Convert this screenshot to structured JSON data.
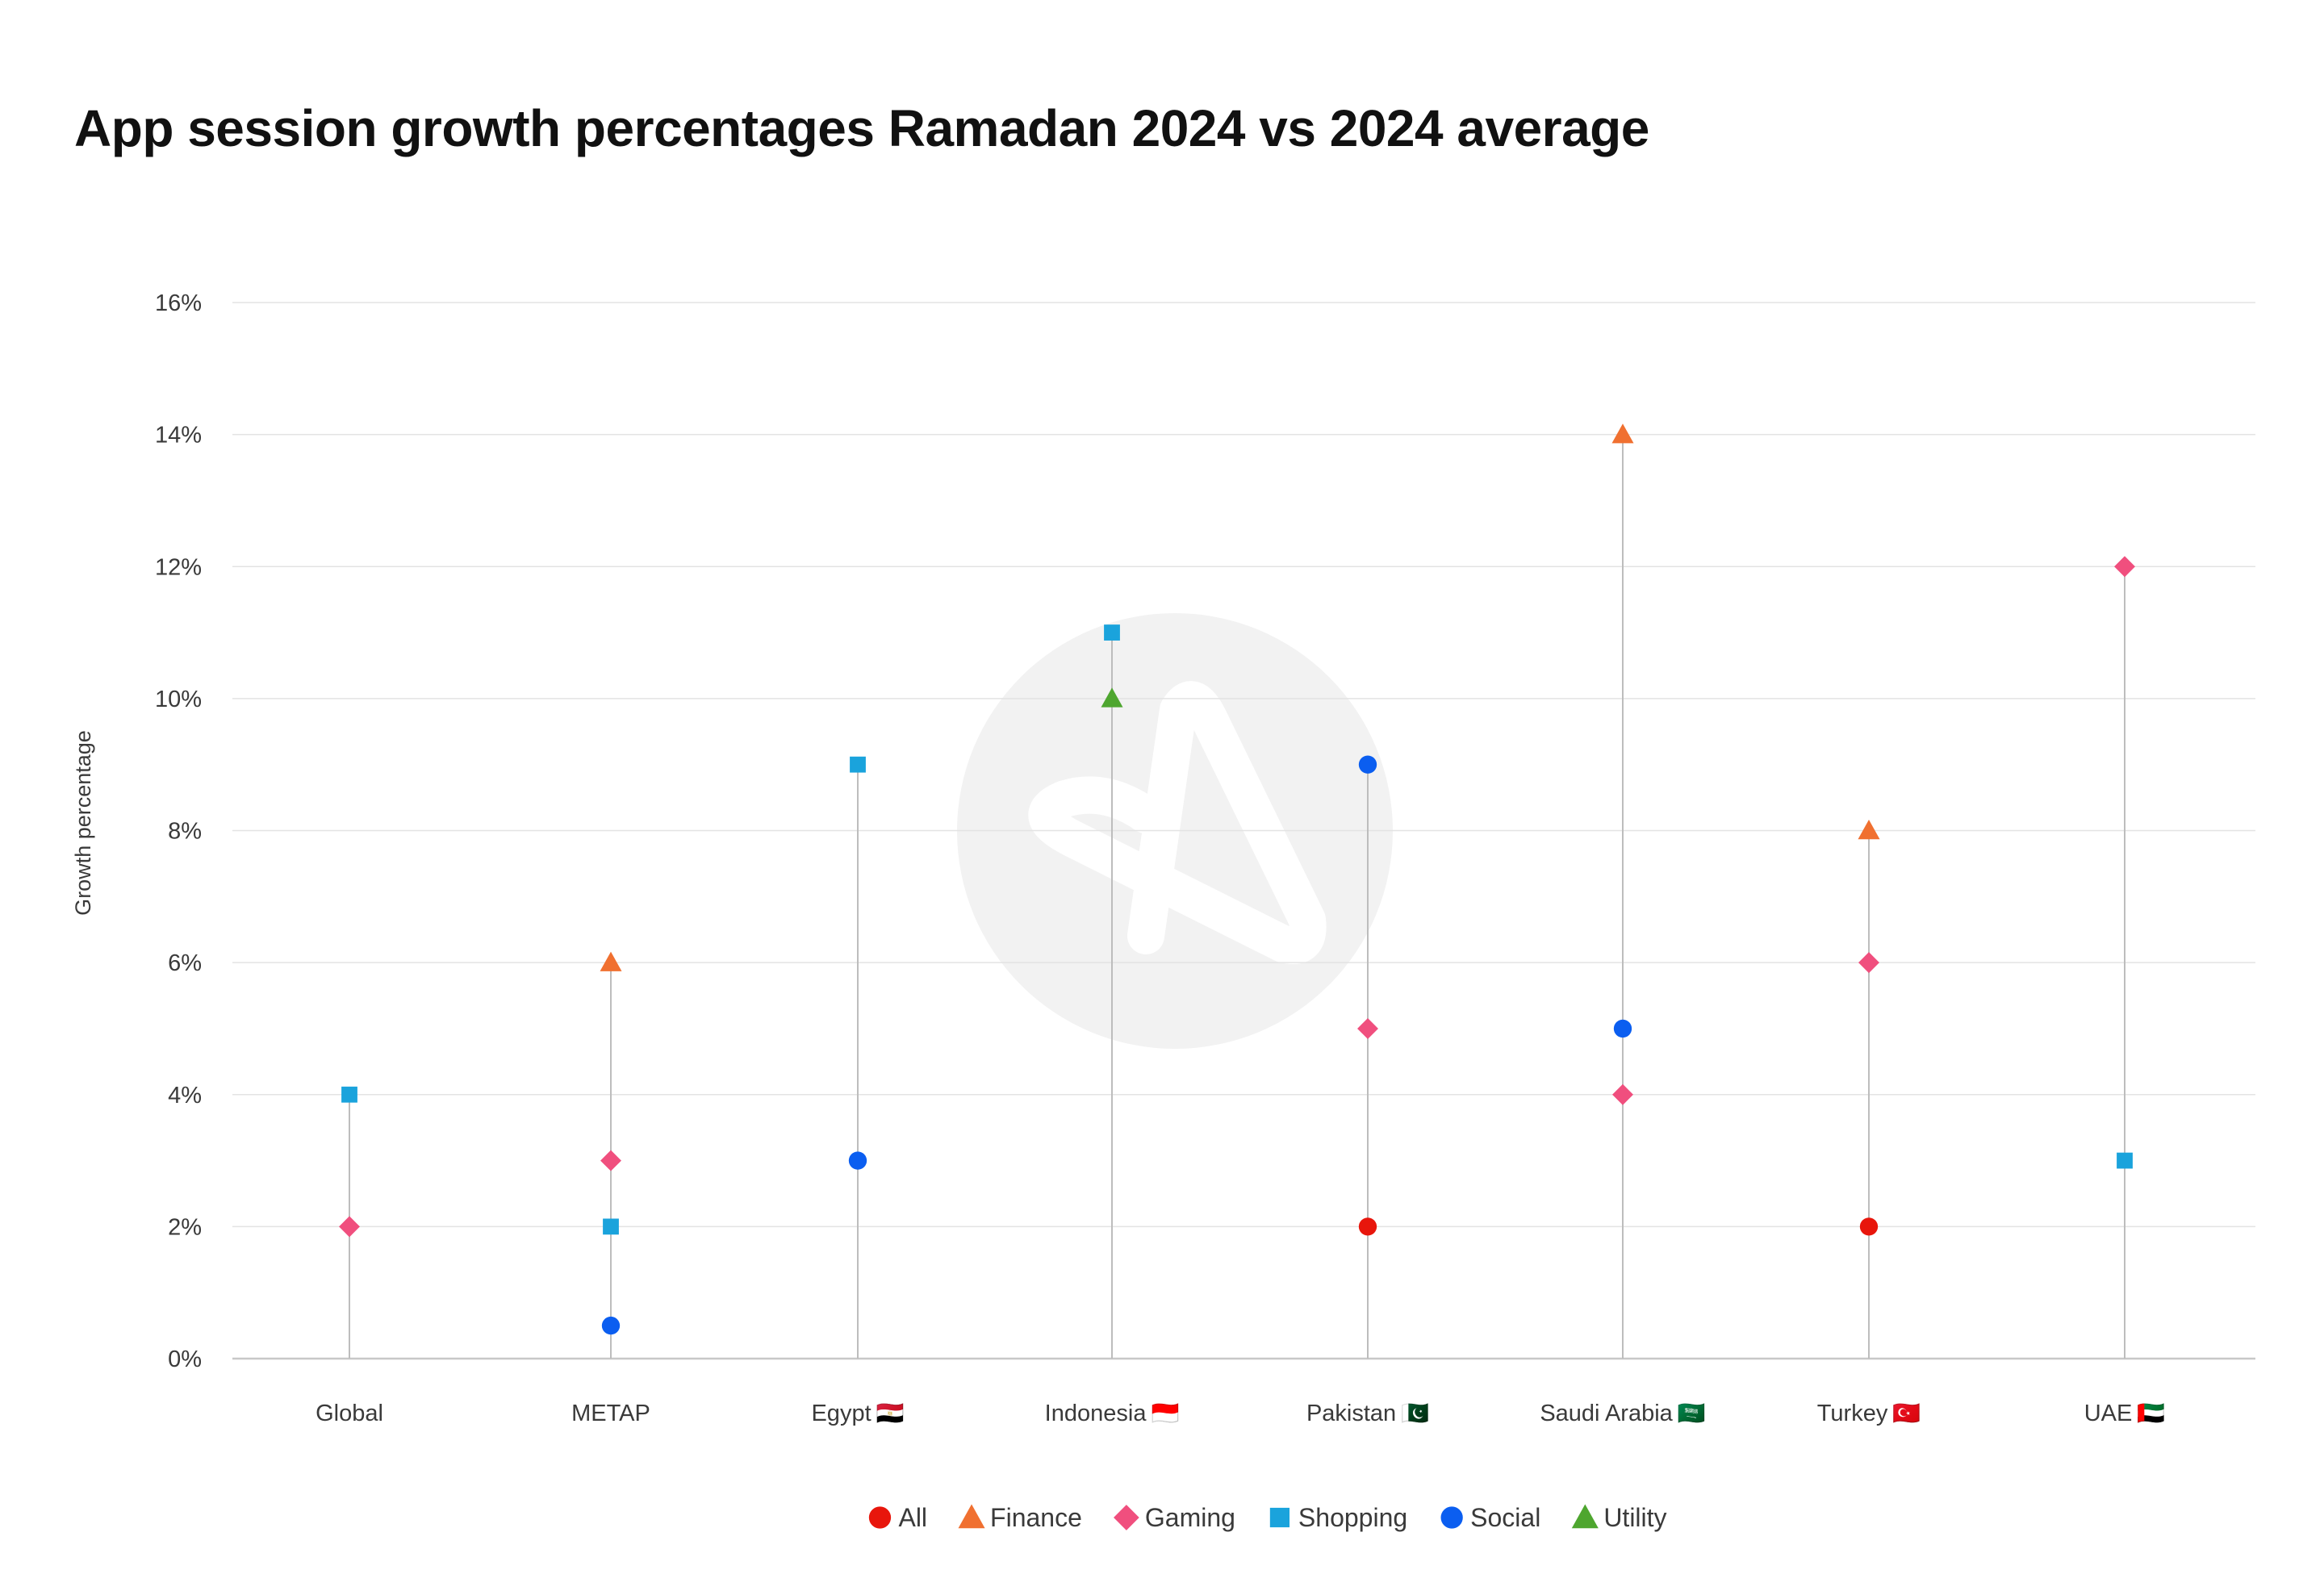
{
  "chart_data": {
    "type": "scatter",
    "title": "App session growth percentages Ramadan 2024 vs 2024 average",
    "ylabel": "Growth percentage",
    "xlabel": "",
    "ylim": [
      0,
      16
    ],
    "y_ticks": [
      0,
      2,
      4,
      6,
      8,
      10,
      12,
      14,
      16
    ],
    "y_tick_suffix": "%",
    "grid": true,
    "legend_position": "bottom-center",
    "categories": [
      {
        "label": "Global",
        "flag": ""
      },
      {
        "label": "METAP",
        "flag": ""
      },
      {
        "label": "Egypt",
        "flag": "🇪🇬"
      },
      {
        "label": "Indonesia",
        "flag": "🇮🇩"
      },
      {
        "label": "Pakistan",
        "flag": "🇵🇰"
      },
      {
        "label": "Saudi Arabia",
        "flag": "🇸🇦"
      },
      {
        "label": "Turkey",
        "flag": "🇹🇷"
      },
      {
        "label": "UAE",
        "flag": "🇦🇪"
      }
    ],
    "series": [
      {
        "name": "All",
        "marker": "circle",
        "color": "#e8160c",
        "values": [
          null,
          null,
          null,
          null,
          2,
          null,
          2,
          null
        ]
      },
      {
        "name": "Finance",
        "marker": "triangle",
        "color": "#f07030",
        "values": [
          null,
          6,
          null,
          null,
          null,
          14,
          8,
          null
        ]
      },
      {
        "name": "Gaming",
        "marker": "diamond",
        "color": "#f04f7e",
        "values": [
          2,
          3,
          null,
          null,
          5,
          4,
          6,
          12
        ]
      },
      {
        "name": "Shopping",
        "marker": "square",
        "color": "#1aa3dc",
        "values": [
          4,
          2,
          9,
          11,
          null,
          null,
          null,
          3
        ]
      },
      {
        "name": "Social",
        "marker": "circle",
        "color": "#0b5ef0",
        "values": [
          null,
          0.5,
          3,
          null,
          9,
          5,
          null,
          null
        ]
      },
      {
        "name": "Utility",
        "marker": "triangle",
        "color": "#4ea62f",
        "values": [
          null,
          null,
          null,
          10,
          null,
          null,
          null,
          null
        ]
      }
    ]
  },
  "colors": {
    "stem": "#bdbdbd",
    "grid": "#e3e3e3",
    "axis": "#c8c8c8",
    "watermark": "#f2f2f2"
  }
}
